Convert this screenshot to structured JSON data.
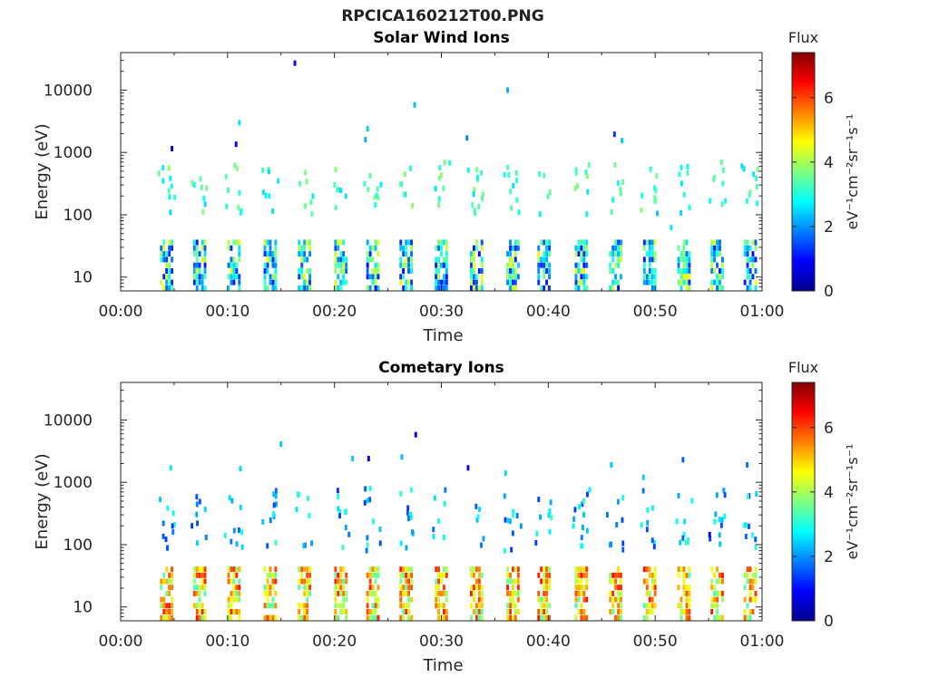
{
  "figure": {
    "title": "RPCICA160212T00.PNG"
  },
  "colorbar": {
    "label": "Flux",
    "units_label": "eV⁻¹cm⁻²sr⁻¹s⁻¹",
    "ticks": [
      "0",
      "2",
      "4",
      "6"
    ],
    "range": [
      0,
      7.4
    ],
    "colormap": "jet"
  },
  "chart_data": [
    {
      "type": "heatmap",
      "title": "Solar Wind Ions",
      "xlabel": "Time",
      "ylabel": "Energy (eV)",
      "x_ticks": [
        "00:00",
        "00:10",
        "00:20",
        "00:30",
        "00:40",
        "00:50",
        "01:00"
      ],
      "x_range_minutes": [
        0,
        60
      ],
      "y_ticks": [
        "10",
        "100",
        "1000",
        "10000"
      ],
      "y_scale": "log",
      "y_range": [
        6,
        40000
      ],
      "scan_times_minutes": [
        4.3,
        7.4,
        10.6,
        14.0,
        17.2,
        20.6,
        23.6,
        26.7,
        30.0,
        33.3,
        36.7,
        39.6,
        43.1,
        46.3,
        49.5,
        52.7,
        55.8,
        58.9
      ],
      "low_energy_band": {
        "energy_min": 6,
        "energy_max": 40,
        "flux_min": 1.0,
        "flux_max": 4.6
      },
      "high_energy_band": {
        "energy_min": 100,
        "energy_max": 700,
        "flux_min": 2.5,
        "flux_max": 3.8
      },
      "sparse_points": [
        {
          "t": 4.8,
          "e": 1150,
          "flux": 0.8
        },
        {
          "t": 11.1,
          "e": 3000,
          "flux": 2.6
        },
        {
          "t": 10.8,
          "e": 1350,
          "flux": 0.9
        },
        {
          "t": 16.3,
          "e": 27000,
          "flux": 0.8
        },
        {
          "t": 23.1,
          "e": 2400,
          "flux": 2.4
        },
        {
          "t": 22.9,
          "e": 1600,
          "flux": 2.2
        },
        {
          "t": 27.5,
          "e": 5800,
          "flux": 2.3
        },
        {
          "t": 32.4,
          "e": 1700,
          "flux": 1.9
        },
        {
          "t": 36.2,
          "e": 10000,
          "flux": 2.2
        },
        {
          "t": 46.2,
          "e": 1950,
          "flux": 1.3
        },
        {
          "t": 46.9,
          "e": 1550,
          "flux": 2.4
        },
        {
          "t": 50.2,
          "e": 105,
          "flux": 2.4
        },
        {
          "t": 51.5,
          "e": 62,
          "flux": 2.6
        }
      ]
    },
    {
      "type": "heatmap",
      "title": "Cometary Ions",
      "xlabel": "Time",
      "ylabel": "Energy (eV)",
      "x_ticks": [
        "00:00",
        "00:10",
        "00:20",
        "00:30",
        "00:40",
        "00:50",
        "01:00"
      ],
      "x_range_minutes": [
        0,
        60
      ],
      "y_ticks": [
        "10",
        "100",
        "1000",
        "10000"
      ],
      "y_scale": "log",
      "y_range": [
        6,
        40000
      ],
      "scan_times_minutes": [
        4.3,
        7.4,
        10.6,
        14.0,
        17.2,
        20.6,
        23.6,
        26.7,
        30.0,
        33.3,
        36.7,
        39.6,
        43.1,
        46.3,
        49.5,
        52.7,
        55.8,
        58.9
      ],
      "low_energy_band": {
        "energy_min": 6,
        "energy_max": 45,
        "flux_min": 3.3,
        "flux_max": 6.4
      },
      "high_energy_band": {
        "energy_min": 80,
        "energy_max": 800,
        "flux_min": 1.3,
        "flux_max": 3.2
      },
      "sparse_points": [
        {
          "t": 4.7,
          "e": 1700,
          "flux": 2.6
        },
        {
          "t": 11.2,
          "e": 1650,
          "flux": 2.5
        },
        {
          "t": 15.0,
          "e": 4100,
          "flux": 2.4
        },
        {
          "t": 21.7,
          "e": 2400,
          "flux": 2.4
        },
        {
          "t": 23.2,
          "e": 2400,
          "flux": 0.9
        },
        {
          "t": 26.3,
          "e": 2550,
          "flux": 2.3
        },
        {
          "t": 27.6,
          "e": 5800,
          "flux": 0.6
        },
        {
          "t": 32.5,
          "e": 1700,
          "flux": 0.9
        },
        {
          "t": 36.0,
          "e": 1400,
          "flux": 2.5
        },
        {
          "t": 45.9,
          "e": 1900,
          "flux": 2.4
        },
        {
          "t": 48.9,
          "e": 1200,
          "flux": 2.4
        },
        {
          "t": 52.6,
          "e": 2300,
          "flux": 1.6
        },
        {
          "t": 58.6,
          "e": 1900,
          "flux": 1.8
        },
        {
          "t": 55.1,
          "e": 145,
          "flux": 0.9
        }
      ]
    }
  ]
}
